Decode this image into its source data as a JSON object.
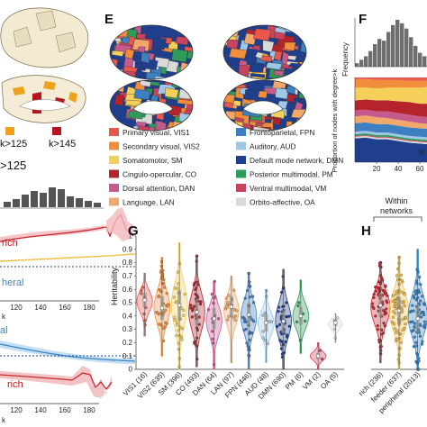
{
  "panel_labels": [
    "E",
    "F",
    "G",
    "H"
  ],
  "colors": {
    "VIS1": "#e8584d",
    "VIS2": "#f08e3c",
    "SM": "#f4cf5a",
    "CO": "#b5242c",
    "DAN": "#c75a8d",
    "LAN": "#f2a86a",
    "FPN": "#3e7fc0",
    "AUD": "#9dc7e4",
    "DMN": "#1f3f8c",
    "PM": "#2f9a5a",
    "VM": "#c9435e",
    "OA": "#d9d9d9",
    "rich": "#c8282e",
    "feeder": "#f0c04a",
    "peripheral": "#3a84c4"
  },
  "left_panels": {
    "legend_k125": "k>125",
    "legend_k145": "k>145",
    "legend_cut": ">125",
    "rich_label_top": "rich",
    "peripheral_label": "heral",
    "xticks_mid": [
      "120",
      "140",
      "160",
      "180"
    ],
    "xlabel_mid": "k",
    "al_label": "al",
    "rich_label_bottom": "rich",
    "xticks_bottom": [
      "120",
      "140",
      "160",
      "180"
    ],
    "xlabel_bottom": "k"
  },
  "legend_items": [
    {
      "key": "VIS1",
      "label": "Primary visual, VIS1"
    },
    {
      "key": "FPN",
      "label": "Frontoparietal, FPN"
    },
    {
      "key": "VIS2",
      "label": "Secondary visual, VIS2"
    },
    {
      "key": "AUD",
      "label": "Auditory, AUD"
    },
    {
      "key": "SM",
      "label": "Somatomotor, SM"
    },
    {
      "key": "DMN",
      "label": "Default mode network, DMN"
    },
    {
      "key": "CO",
      "label": "Cingulo-opercular, CO"
    },
    {
      "key": "PM",
      "label": "Posterior multimodal, PM"
    },
    {
      "key": "DAN",
      "label": "Dorsal attention, DAN"
    },
    {
      "key": "VM",
      "label": "Ventral multimodal, VM"
    },
    {
      "key": "LAN",
      "label": "Language, LAN"
    },
    {
      "key": "OA",
      "label": "Orbito-affective, OA"
    }
  ],
  "chart_data": [
    {
      "panel": "F",
      "type": "bar",
      "ylabel": "Frequency",
      "values": [
        2,
        4,
        6,
        9,
        13,
        16,
        15,
        20,
        24,
        27,
        25,
        22,
        17,
        12,
        8,
        6
      ]
    },
    {
      "panel": "F",
      "type": "area",
      "ylabel": "Proportion of nodes with degree>k",
      "xticks": [
        "20",
        "40",
        "60"
      ],
      "xlabel_partial": "N",
      "stack_order": [
        "DMN",
        "OA",
        "VM",
        "PM",
        "AUD",
        "FPN",
        "LAN",
        "DAN",
        "CO",
        "SM",
        "VIS2",
        "VIS1"
      ],
      "x": [
        0,
        10,
        20,
        30,
        40,
        50,
        60,
        70
      ],
      "series": [
        {
          "name": "VIS1",
          "values": [
            0.02,
            0.02,
            0.03,
            0.03,
            0.03,
            0.04,
            0.04,
            0.04
          ]
        },
        {
          "name": "VIS2",
          "values": [
            0.1,
            0.1,
            0.1,
            0.09,
            0.09,
            0.08,
            0.08,
            0.07
          ]
        },
        {
          "name": "SM",
          "values": [
            0.15,
            0.14,
            0.14,
            0.15,
            0.16,
            0.17,
            0.19,
            0.2
          ]
        },
        {
          "name": "CO",
          "values": [
            0.12,
            0.12,
            0.13,
            0.13,
            0.14,
            0.15,
            0.15,
            0.16
          ]
        },
        {
          "name": "DAN",
          "values": [
            0.07,
            0.07,
            0.07,
            0.08,
            0.08,
            0.08,
            0.08,
            0.08
          ]
        },
        {
          "name": "LAN",
          "values": [
            0.08,
            0.08,
            0.08,
            0.07,
            0.07,
            0.07,
            0.06,
            0.06
          ]
        },
        {
          "name": "FPN",
          "values": [
            0.1,
            0.1,
            0.1,
            0.1,
            0.1,
            0.1,
            0.1,
            0.1
          ]
        },
        {
          "name": "AUD",
          "values": [
            0.03,
            0.03,
            0.03,
            0.03,
            0.03,
            0.03,
            0.03,
            0.03
          ]
        },
        {
          "name": "PM",
          "values": [
            0.02,
            0.02,
            0.02,
            0.02,
            0.02,
            0.02,
            0.02,
            0.02
          ]
        },
        {
          "name": "VM",
          "values": [
            0.01,
            0.01,
            0.01,
            0.01,
            0.01,
            0.01,
            0.01,
            0.01
          ]
        },
        {
          "name": "OA",
          "values": [
            0.02,
            0.02,
            0.02,
            0.02,
            0.02,
            0.02,
            0.02,
            0.02
          ]
        },
        {
          "name": "DMN",
          "values": [
            0.28,
            0.29,
            0.27,
            0.27,
            0.25,
            0.23,
            0.22,
            0.21
          ]
        }
      ]
    },
    {
      "panel": "G",
      "type": "scatter",
      "ylabel": "Heritability",
      "ylim": [
        0,
        1
      ],
      "yticks": [
        "0",
        "0.1",
        "0.2",
        "0.3",
        "0.4",
        "0.5",
        "0.6",
        "0.7",
        "0.8",
        "0.9",
        "1"
      ],
      "categories": [
        "VIS1 (16)",
        "VIS2 (635)",
        "SM (396)",
        "CO (493)",
        "DAN (64)",
        "LAN (97)",
        "FPN (446)",
        "AUD (48)",
        "DMN (690)",
        "PM (6)",
        "VM (2)",
        "OA (5)"
      ],
      "keys": [
        "VIS1",
        "VIS2",
        "SM",
        "CO",
        "DAN",
        "LAN",
        "FPN",
        "AUD",
        "DMN",
        "PM",
        "VM",
        "OA"
      ],
      "ranges": [
        [
          0.25,
          0.72
        ],
        [
          0.1,
          0.84
        ],
        [
          0.0,
          0.95
        ],
        [
          0.02,
          0.85
        ],
        [
          0.0,
          0.66
        ],
        [
          0.05,
          0.7
        ],
        [
          0.0,
          0.72
        ],
        [
          0.05,
          0.6
        ],
        [
          0.0,
          0.75
        ],
        [
          0.12,
          0.67
        ],
        [
          0.0,
          0.2
        ],
        [
          0.2,
          0.42
        ]
      ],
      "medians": [
        0.52,
        0.46,
        0.48,
        0.43,
        0.38,
        0.47,
        0.41,
        0.35,
        0.36,
        0.4,
        0.1,
        0.35
      ]
    },
    {
      "panel": "H",
      "type": "scatter",
      "title": "Within\nnetworks",
      "title_lines": [
        "Within",
        "networks"
      ],
      "categories": [
        "rich (236)",
        "feeder (637)",
        "peripheral (2013)"
      ],
      "keys": [
        "rich",
        "feeder",
        "peripheral"
      ],
      "ranges": [
        [
          0.05,
          0.8
        ],
        [
          0.0,
          0.85
        ],
        [
          0.0,
          0.9
        ]
      ],
      "medians": [
        0.48,
        0.44,
        0.38
      ]
    }
  ]
}
